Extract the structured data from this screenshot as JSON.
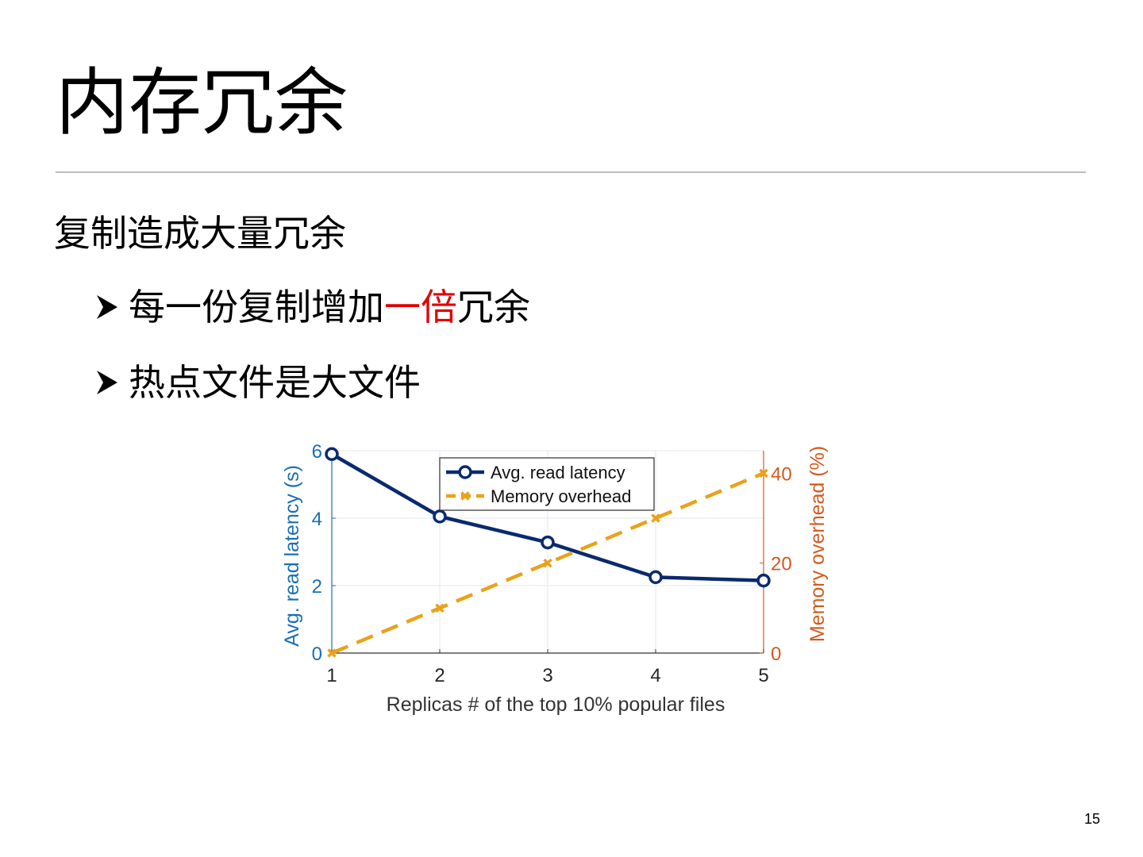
{
  "slide": {
    "title": "内存冗余",
    "bullet_main": "复制造成大量冗余",
    "sub_bullets": [
      {
        "before": "每一份复制增加",
        "highlight": "一倍",
        "after": "冗余"
      },
      {
        "before": "热点文件是大文件",
        "highlight": "",
        "after": ""
      }
    ],
    "page_number": "15",
    "colors": {
      "highlight": "#e00000",
      "rule": "#bdbdbd"
    },
    "icons": {
      "bullet": "arrowhead-bullet-icon"
    }
  },
  "chart_data": {
    "type": "line",
    "x": [
      1,
      2,
      3,
      4,
      5
    ],
    "xticks": [
      "1",
      "2",
      "3",
      "4",
      "5"
    ],
    "xlabel": "Replicas # of the top 10% popular files",
    "xlim": [
      1,
      5
    ],
    "ylabel_left": "Avg. read latency (s)",
    "ylim_left": [
      0,
      6
    ],
    "yticks_left": [
      0,
      2,
      4,
      6
    ],
    "ylabel_right": "Memory overhead (%)",
    "ylim_right": [
      0,
      45
    ],
    "yticks_right": [
      0,
      20,
      40
    ],
    "grid": true,
    "legend_position": "top-center",
    "series": [
      {
        "name": "Avg. read latency",
        "axis": "left",
        "values": [
          5.9,
          4.05,
          3.28,
          2.25,
          2.15
        ],
        "color": "#0a2a6e",
        "marker": "circle",
        "linestyle": "solid"
      },
      {
        "name": "Memory overhead",
        "axis": "right",
        "values": [
          0,
          10,
          20,
          30,
          40
        ],
        "color": "#e9a21a",
        "marker": "x",
        "linestyle": "dashed"
      }
    ],
    "axis_colors": {
      "left": "#1a6fb5",
      "right": "#d35a1e",
      "x": "#333333"
    }
  }
}
